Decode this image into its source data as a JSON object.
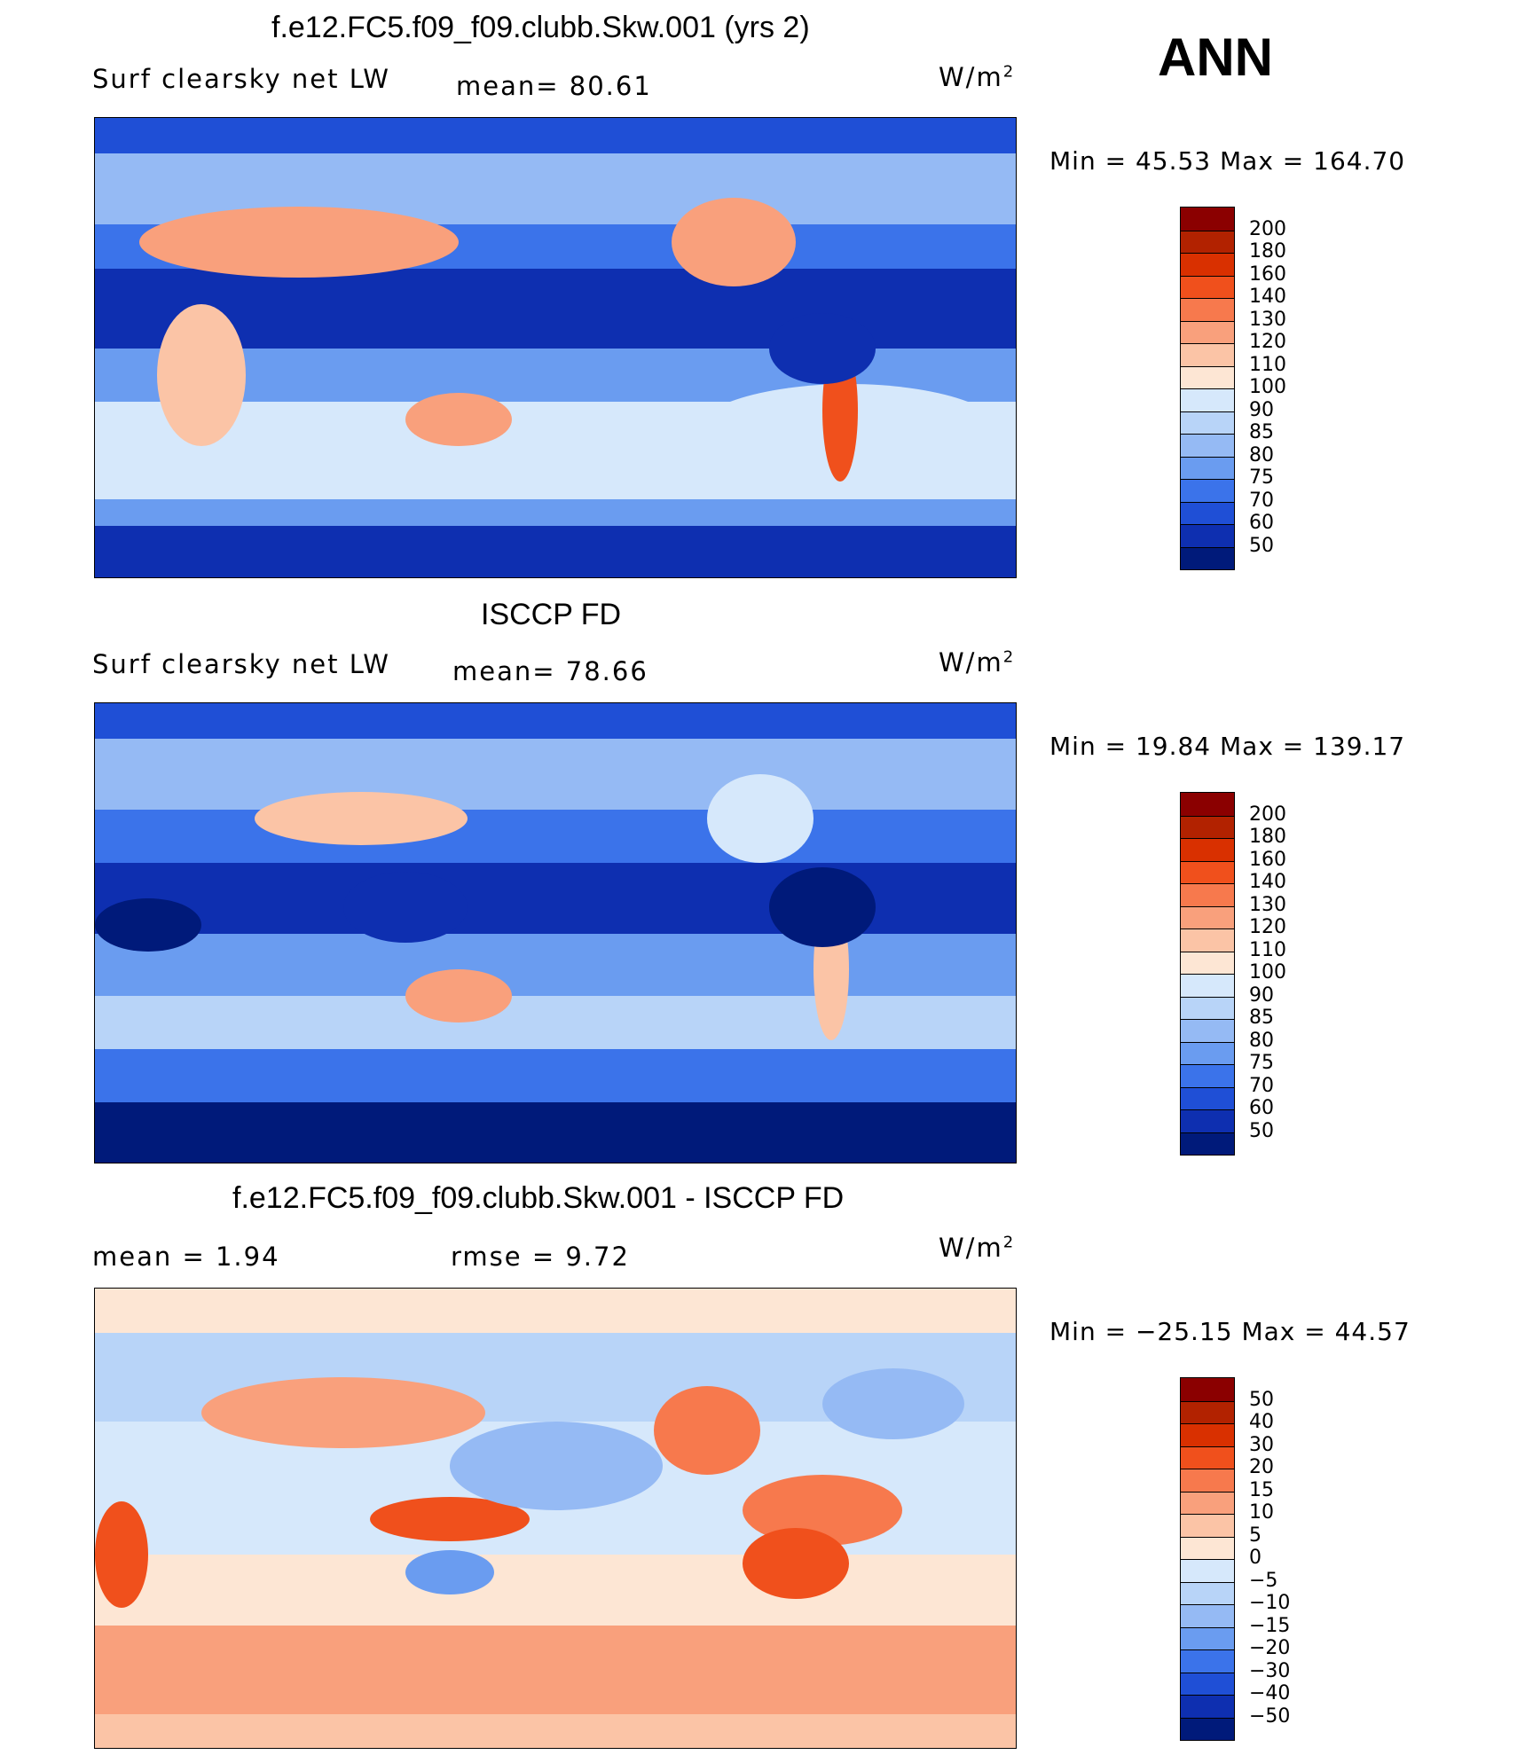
{
  "season": "ANN",
  "units_base": "W/m",
  "units_exp": "2",
  "panels": [
    {
      "title": "f.e12.FC5.f09_f09.clubb.Skw.001 (yrs 2)",
      "left_label": "Surf  clearsky  net  LW",
      "stat1": "mean=   80.61",
      "stat2": "",
      "minmax": "Min  =    45.53  Max  =  164.70",
      "levels": [
        "200",
        "180",
        "160",
        "140",
        "130",
        "120",
        "110",
        "100",
        "90",
        "85",
        "80",
        "75",
        "70",
        "60",
        "50"
      ],
      "colors": [
        "#8b0000",
        "#b22200",
        "#d93000",
        "#f0501c",
        "#f7794d",
        "#f9a07c",
        "#fbc4a6",
        "#fde6d4",
        "#d6e8fb",
        "#b8d4f8",
        "#95baf4",
        "#6a9cf0",
        "#3b73ea",
        "#1f4fd6",
        "#0e2fb0",
        "#001a7a"
      ]
    },
    {
      "title": "ISCCP FD",
      "left_label": "Surf  clearsky  net  LW",
      "stat1": "mean=   78.66",
      "stat2": "",
      "minmax": "Min  =    19.84  Max  =  139.17",
      "levels": [
        "200",
        "180",
        "160",
        "140",
        "130",
        "120",
        "110",
        "100",
        "90",
        "85",
        "80",
        "75",
        "70",
        "60",
        "50"
      ],
      "colors": [
        "#8b0000",
        "#b22200",
        "#d93000",
        "#f0501c",
        "#f7794d",
        "#f9a07c",
        "#fbc4a6",
        "#fde6d4",
        "#d6e8fb",
        "#b8d4f8",
        "#95baf4",
        "#6a9cf0",
        "#3b73ea",
        "#1f4fd6",
        "#0e2fb0",
        "#001a7a"
      ]
    },
    {
      "title": "f.e12.FC5.f09_f09.clubb.Skw.001 - ISCCP FD",
      "left_label": "mean  =     1.94",
      "stat1": "rmse  =     9.72",
      "stat2": "",
      "minmax": "Min  = −25.15  Max  =    44.57",
      "levels": [
        "50",
        "40",
        "30",
        "20",
        "15",
        "10",
        "5",
        "0",
        "−5",
        "−10",
        "−15",
        "−20",
        "−30",
        "−40",
        "−50"
      ],
      "colors": [
        "#8b0000",
        "#b22200",
        "#d93000",
        "#f0501c",
        "#f7794d",
        "#f9a07c",
        "#fbc4a6",
        "#fde6d4",
        "#d6e8fb",
        "#b8d4f8",
        "#95baf4",
        "#6a9cf0",
        "#3b73ea",
        "#1f4fd6",
        "#0e2fb0",
        "#001a7a"
      ]
    }
  ]
}
